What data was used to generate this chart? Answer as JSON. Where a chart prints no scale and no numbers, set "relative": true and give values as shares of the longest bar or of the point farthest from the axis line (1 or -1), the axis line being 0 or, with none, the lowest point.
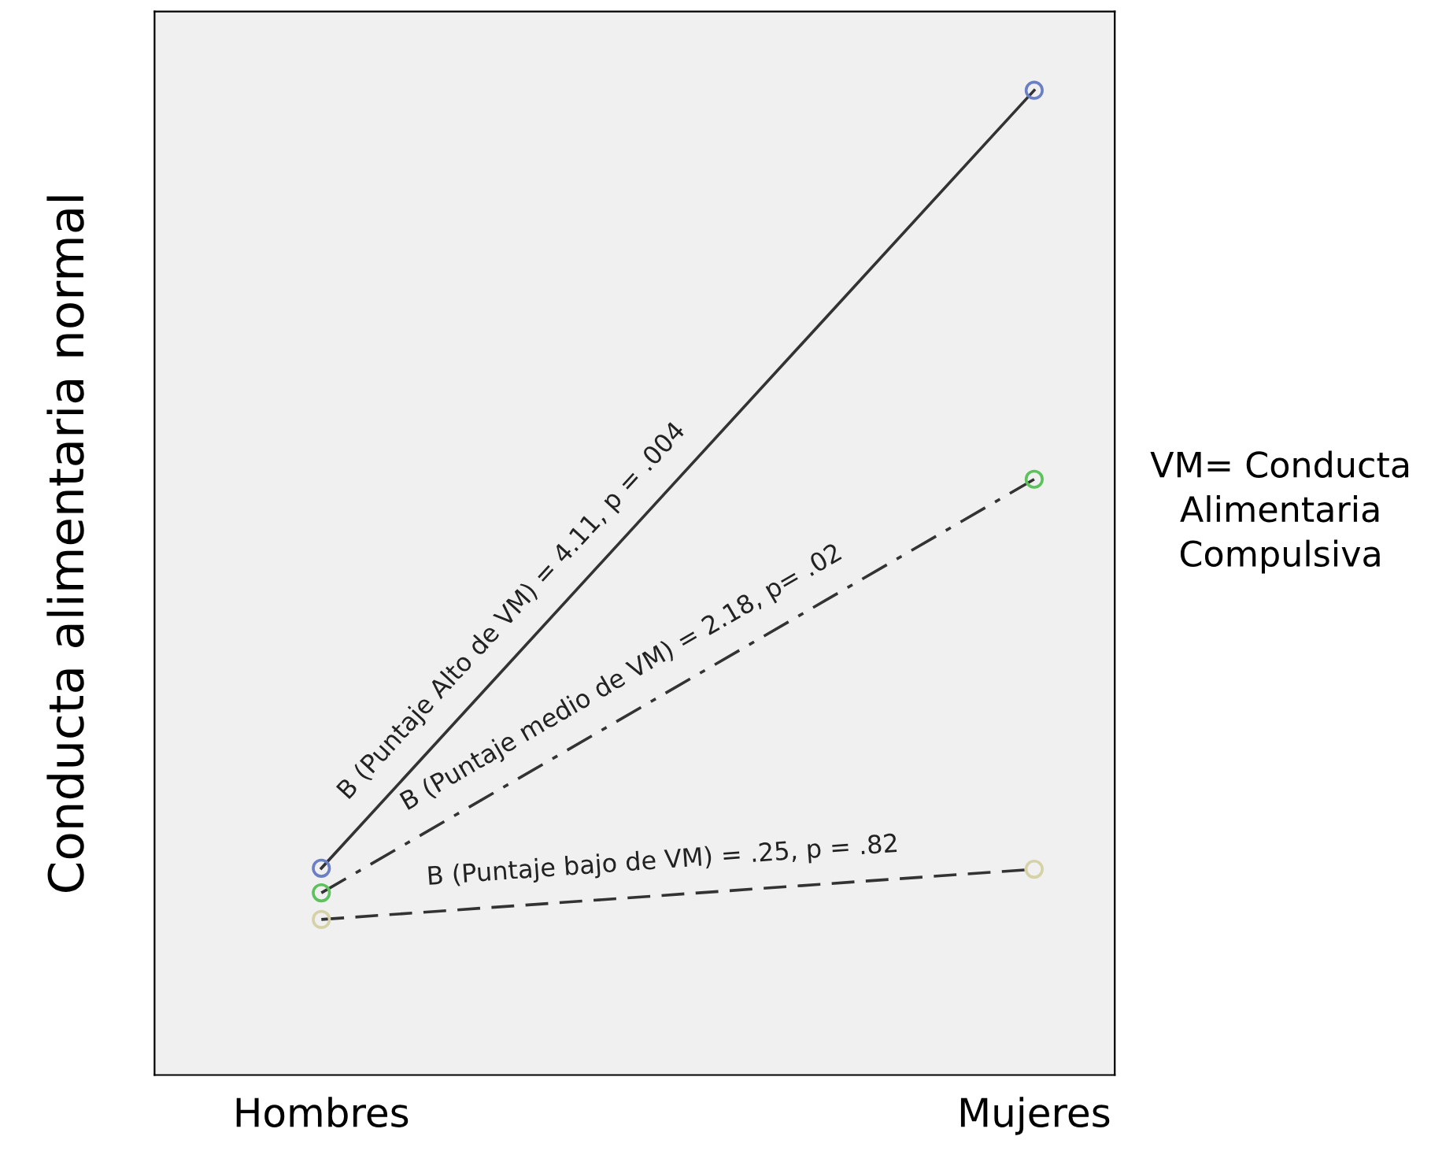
{
  "chart_data": {
    "type": "line",
    "relative": true,
    "ylabel": "Conducta alimentaria normal",
    "categories": [
      "Hombres",
      "Mujeres"
    ],
    "series": [
      {
        "color": "#333333",
        "line_style": "solid",
        "marker": "none",
        "values": [
          0.21,
          1
        ]
      },
      {
        "color": "#333333",
        "line_style": "dashdot",
        "marker": "none",
        "values": [
          0.185,
          0.605
        ]
      },
      {
        "color": "#333333",
        "line_style": "dashed",
        "marker": "none",
        "values": [
          0.158,
          0.209
        ]
      },
      {
        "type": "scatter",
        "color": "#6b7fc4",
        "marker": "circle",
        "values": [
          0.21,
          1
        ]
      },
      {
        "type": "scatter",
        "color": "#5cc25c",
        "marker": "circle",
        "values": [
          0.185,
          0.605
        ]
      },
      {
        "type": "scatter",
        "color": "#d6d2a8",
        "marker": "circle",
        "values": [
          0.158,
          0.209
        ]
      }
    ],
    "annotations": [
      "B (Puntaje Alto de VM) = 4.11, p = .004",
      "B (Puntaje medio de VM) = 2.18, p= .02",
      "B (Puntaje bajo de VM) = .25, p = .82",
      "VM= Conducta\nAlimentaria\nCompulsiva"
    ],
    "legend": false,
    "grid": false
  }
}
